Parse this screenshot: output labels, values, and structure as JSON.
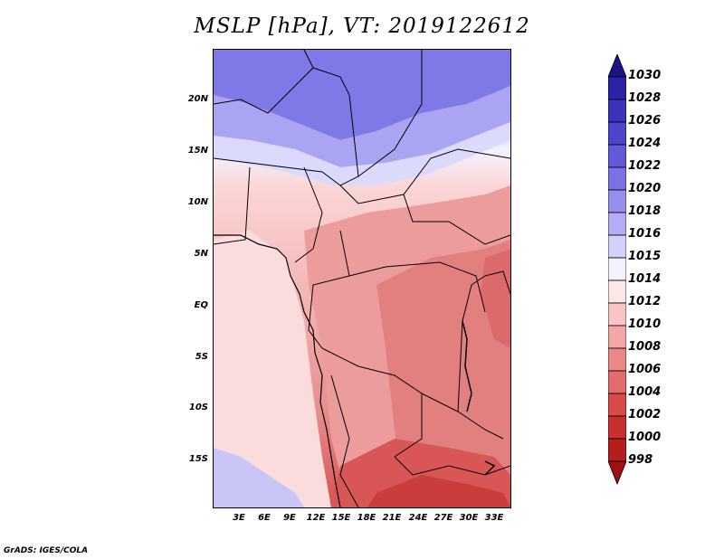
{
  "title": "MSLP [hPa], VT: 2019122612",
  "credit": "GrADS: IGES/COLA",
  "y_axis_labels": [
    "20N",
    "15N",
    "10N",
    "5N",
    "EQ",
    "5S",
    "10S",
    "15S"
  ],
  "x_axis_labels": [
    "3E",
    "6E",
    "9E",
    "12E",
    "15E",
    "18E",
    "21E",
    "24E",
    "27E",
    "30E",
    "33E"
  ],
  "colorbar": {
    "labels": [
      "1030",
      "1028",
      "1026",
      "1024",
      "1022",
      "1020",
      "1018",
      "1016",
      "1015",
      "1014",
      "1012",
      "1010",
      "1008",
      "1006",
      "1004",
      "1002",
      "1000",
      "998"
    ],
    "colors": [
      "#1a1486",
      "#2b23a5",
      "#3b33bc",
      "#4c45cc",
      "#6159d8",
      "#7a72e4",
      "#968fee",
      "#b3adf5",
      "#d3d0fa",
      "#f4f2ff",
      "#fde6e6",
      "#f8c4c4",
      "#f2a6a6",
      "#ea8888",
      "#e36b6b",
      "#d94a4a",
      "#c92f2f",
      "#b51e1e",
      "#9f1010"
    ]
  }
}
